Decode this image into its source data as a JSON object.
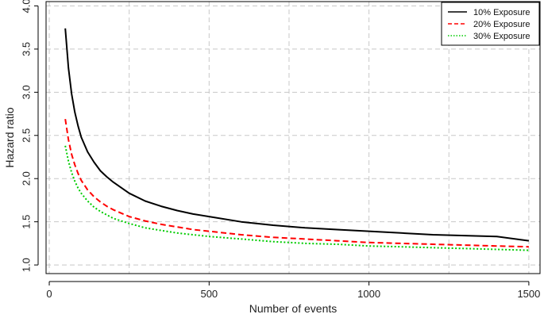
{
  "chart_data": {
    "type": "line",
    "title": "",
    "xlabel": "Number of events",
    "ylabel": "Hazard ratio",
    "xlim": [
      -10,
      1535
    ],
    "ylim": [
      0.9,
      4.05
    ],
    "xticks": [
      0,
      500,
      1000,
      1500
    ],
    "xtick_labels": [
      "0",
      "500",
      "1000",
      "1500"
    ],
    "yticks": [
      1.0,
      1.5,
      2.0,
      2.5,
      3.0,
      3.5,
      4.0
    ],
    "ytick_labels": [
      "1.0",
      "1.5",
      "2.0",
      "2.5",
      "3.0",
      "3.5",
      "4.0"
    ],
    "grid_x": [
      0,
      250,
      500,
      750,
      1000,
      1250,
      1500
    ],
    "grid_y": [
      1.0,
      1.5,
      2.0,
      2.5,
      3.0,
      3.5,
      4.0
    ],
    "grid": true,
    "legend_position": "top-right",
    "x": [
      50,
      60,
      70,
      80,
      90,
      100,
      120,
      140,
      160,
      180,
      200,
      250,
      300,
      350,
      400,
      450,
      500,
      600,
      700,
      800,
      900,
      1000,
      1100,
      1200,
      1300,
      1400,
      1500
    ],
    "series": [
      {
        "name": "10% Exposure",
        "color": "#000000",
        "dash": "solid",
        "values": [
          3.74,
          3.28,
          2.98,
          2.77,
          2.61,
          2.48,
          2.31,
          2.19,
          2.09,
          2.02,
          1.96,
          1.83,
          1.74,
          1.68,
          1.63,
          1.59,
          1.56,
          1.5,
          1.46,
          1.43,
          1.41,
          1.39,
          1.37,
          1.35,
          1.34,
          1.33,
          1.28
        ]
      },
      {
        "name": "20% Exposure",
        "color": "#ff0000",
        "dash": "dashed",
        "values": [
          2.69,
          2.45,
          2.28,
          2.16,
          2.06,
          1.98,
          1.87,
          1.79,
          1.73,
          1.68,
          1.64,
          1.56,
          1.51,
          1.47,
          1.44,
          1.41,
          1.39,
          1.35,
          1.32,
          1.3,
          1.28,
          1.26,
          1.25,
          1.24,
          1.23,
          1.22,
          1.21
        ]
      },
      {
        "name": "30% Exposure",
        "color": "#00cc00",
        "dash": "dotted",
        "values": [
          2.38,
          2.2,
          2.07,
          1.97,
          1.89,
          1.83,
          1.74,
          1.67,
          1.62,
          1.58,
          1.54,
          1.48,
          1.43,
          1.4,
          1.37,
          1.35,
          1.33,
          1.3,
          1.27,
          1.25,
          1.24,
          1.22,
          1.21,
          1.2,
          1.19,
          1.18,
          1.17
        ]
      }
    ]
  }
}
